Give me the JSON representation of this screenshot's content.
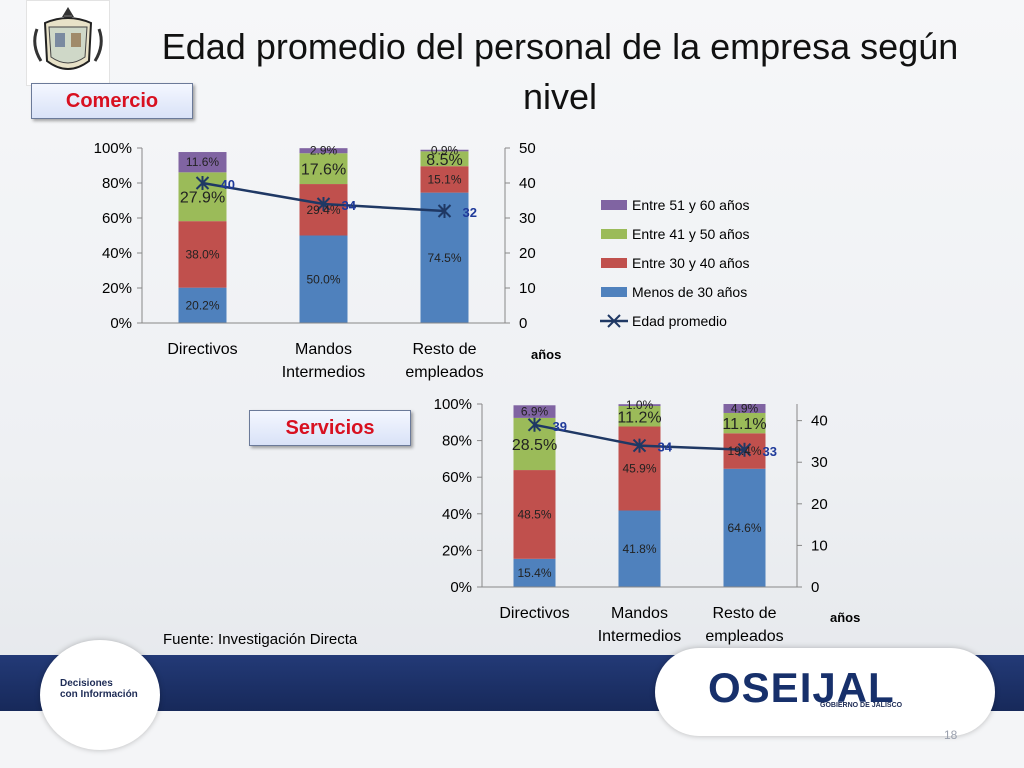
{
  "title": "Edad promedio del personal de la empresa según nivel",
  "source": "Fuente: Investigación Directa",
  "page_number": "18",
  "footer": {
    "left_logo_line1": "Decisiones",
    "left_logo_line2": "con Información",
    "right_logo": "OSEIJAL",
    "right_logo_sub": "GOBIERNO DE JALISCO"
  },
  "colors": {
    "s51_60": "#8064a2",
    "s41_50": "#9bbb59",
    "s30_40": "#c0504d",
    "s_menos30": "#4f81bd",
    "line": "#1f3864"
  },
  "legend": [
    "Entre 51 y 60 años",
    "Entre 41 y 50 años",
    "Entre 30 y 40 años",
    "Menos de 30 años",
    "Edad promedio"
  ],
  "chart_data": [
    {
      "type": "bar",
      "stacked": true,
      "tag": "Comercio",
      "categories": [
        "Directivos",
        "Mandos Intermedios",
        "Resto de empleados"
      ],
      "series": [
        {
          "name": "Menos de 30 años",
          "values": [
            20.2,
            50.0,
            74.5
          ],
          "labels": [
            "20.2%",
            "50.0%",
            "74.5%"
          ]
        },
        {
          "name": "Entre 30 y 40 años",
          "values": [
            38.0,
            29.4,
            15.1
          ],
          "labels": [
            "38.0%",
            "29.4%",
            "15.1%"
          ]
        },
        {
          "name": "Entre 41 y 50 años",
          "values": [
            27.9,
            17.6,
            8.5
          ],
          "labels": [
            "27.9%",
            "17.6%",
            "8.5%"
          ]
        },
        {
          "name": "Entre 51 y 60 años",
          "values": [
            11.6,
            2.9,
            0.9
          ],
          "labels": [
            "11.6%",
            "2.9%",
            "0.9%"
          ]
        }
      ],
      "line": {
        "name": "Edad promedio",
        "values": [
          40,
          34,
          32
        ],
        "labels": [
          "40",
          "34",
          "32"
        ]
      },
      "y_left": {
        "ticks": [
          "0%",
          "20%",
          "40%",
          "60%",
          "80%",
          "100%"
        ],
        "ylim": [
          0,
          100
        ]
      },
      "y_right": {
        "ticks": [
          "0",
          "10",
          "20",
          "30",
          "40",
          "50"
        ],
        "ylim": [
          0,
          50
        ],
        "label": "años"
      },
      "legend_position": "right"
    },
    {
      "type": "bar",
      "stacked": true,
      "tag": "Servicios",
      "categories": [
        "Directivos",
        "Mandos Intermedios",
        "Resto de empleados"
      ],
      "series": [
        {
          "name": "Menos de 30 años",
          "values": [
            15.4,
            41.8,
            64.6
          ],
          "labels": [
            "15.4%",
            "41.8%",
            "64.6%"
          ]
        },
        {
          "name": "Entre 30 y 40 años",
          "values": [
            48.5,
            45.9,
            19.4
          ],
          "labels": [
            "48.5%",
            "45.9%",
            "19.4%"
          ]
        },
        {
          "name": "Entre 41 y 50 años",
          "values": [
            28.5,
            11.2,
            11.1
          ],
          "labels": [
            "28.5%",
            "11.2%",
            "11.1%"
          ]
        },
        {
          "name": "Entre 51 y 60 años",
          "values": [
            6.9,
            1.0,
            4.9
          ],
          "labels": [
            "6.9%",
            "1.0%",
            "4.9%"
          ]
        }
      ],
      "line": {
        "name": "Edad promedio",
        "values": [
          39,
          34,
          33
        ],
        "labels": [
          "39",
          "34",
          "33"
        ]
      },
      "y_left": {
        "ticks": [
          "0%",
          "20%",
          "40%",
          "60%",
          "80%",
          "100%"
        ],
        "ylim": [
          0,
          100
        ]
      },
      "y_right": {
        "ticks": [
          "0",
          "10",
          "20",
          "30",
          "40"
        ],
        "ylim": [
          0,
          44
        ],
        "label": "años"
      }
    }
  ]
}
